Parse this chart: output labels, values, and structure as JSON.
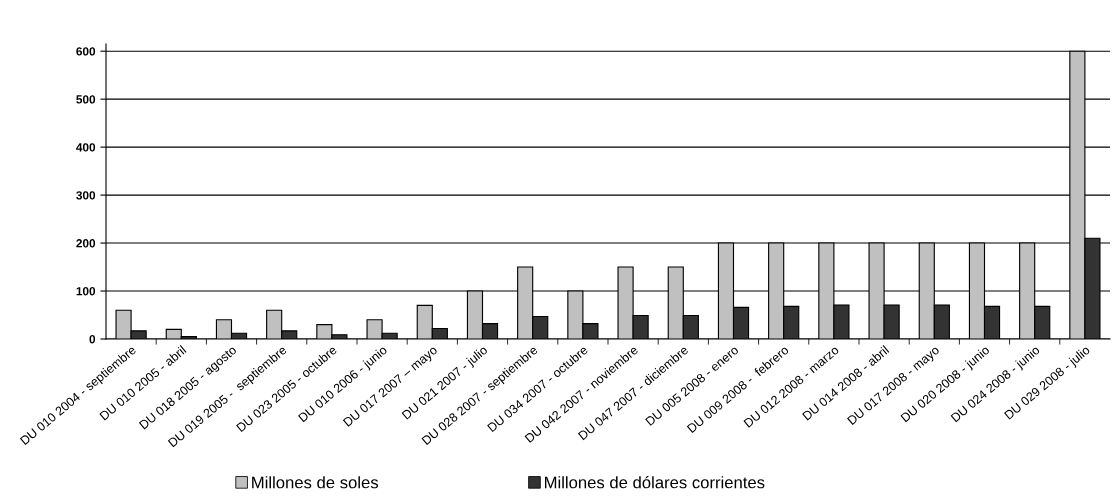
{
  "chart_data": {
    "type": "bar",
    "categories": [
      "DU 010 2004 - septiembre",
      "DU 010 2005 - abril",
      "DU 018 2005 - agosto",
      "DU 019 2005 -  septiembre",
      "DU 023 2005 - octubre",
      "DU 010 2006 - junio",
      "DU 017 2007 – mayo",
      "DU 021 2007 - julio",
      "DU 028 2007 - septiembre",
      "DU 034 2007 - octubre",
      "DU 042 2007 - noviembre",
      "DU 047 2007 - diciembre",
      "DU 005 2008 - enero",
      "DU 009 2008 -  febrero",
      "DU 012 2008 - marzo",
      "DU 014 2008 - abril",
      "DU 017 2008 - mayo",
      "DU 020 2008 - junio",
      "DU 024 2008 - junio",
      "DU 029 2008 - julio"
    ],
    "series": [
      {
        "name": "Millones de soles",
        "color": "#c0c0c0",
        "values": [
          60,
          20,
          40,
          60,
          30,
          40,
          70,
          100,
          150,
          100,
          150,
          150,
          200,
          200,
          200,
          200,
          200,
          200,
          200,
          600
        ]
      },
      {
        "name": "Millones de dólares corrientes",
        "color": "#333333",
        "values": [
          17,
          5,
          12,
          17,
          9,
          12,
          22,
          32,
          47,
          32,
          49,
          49,
          66,
          68,
          71,
          71,
          71,
          68,
          68,
          210
        ]
      }
    ],
    "ylim": [
      0,
      615
    ],
    "yticks": [
      0,
      100,
      200,
      300,
      400,
      500,
      600
    ],
    "grid": "y",
    "legend": "bottom"
  }
}
